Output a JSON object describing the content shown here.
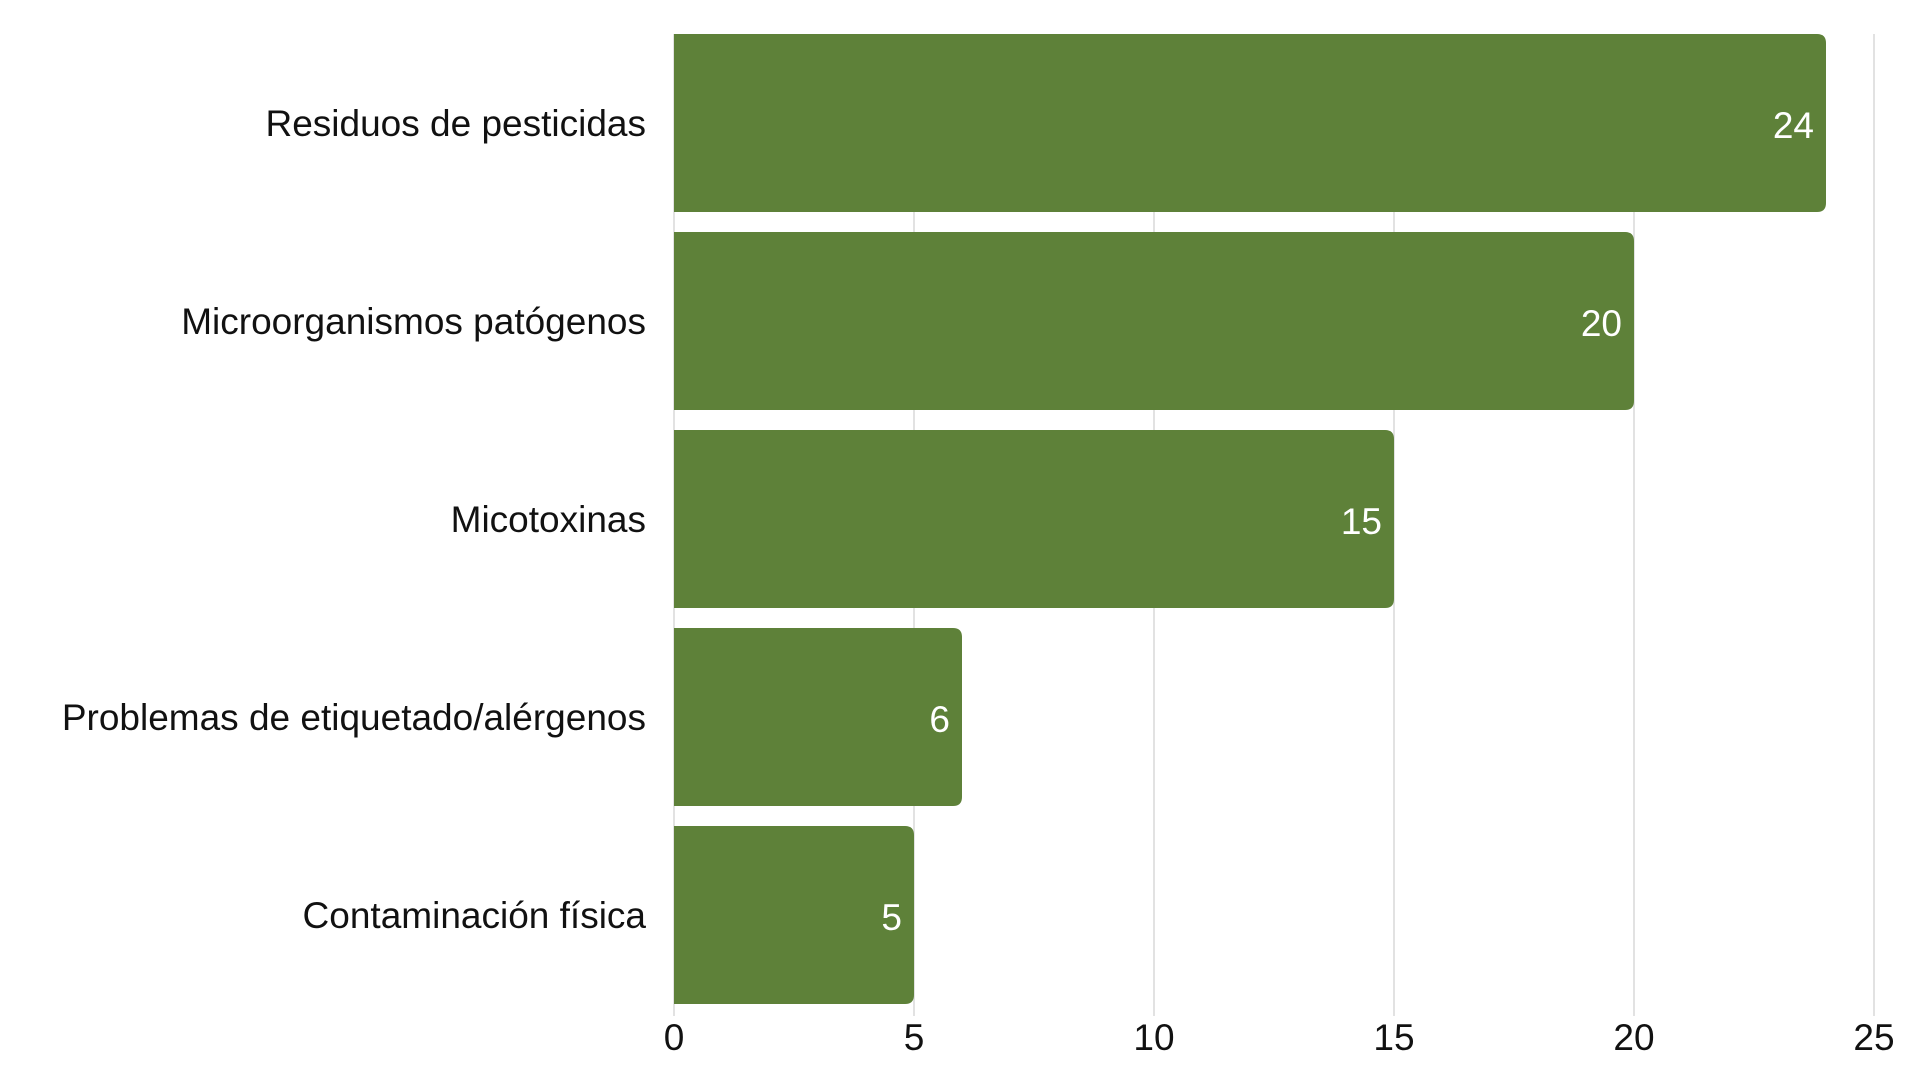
{
  "chart_data": {
    "type": "bar",
    "orientation": "horizontal",
    "categories": [
      "Residuos de pesticidas",
      "Microorganismos patógenos",
      "Micotoxinas",
      "Problemas de etiquetado/alérgenos",
      "Contaminación física"
    ],
    "values": [
      24,
      20,
      15,
      6,
      5
    ],
    "data_labels": [
      "24",
      "20",
      "15",
      "6",
      "5"
    ],
    "x_ticks": [
      "0",
      "5",
      "10",
      "15",
      "20",
      "25"
    ],
    "x_tick_values": [
      0,
      5,
      10,
      15,
      20,
      25
    ],
    "xlim": [
      0,
      25
    ],
    "title": "",
    "xlabel": "",
    "ylabel": "",
    "grid": "vertical",
    "legend": "none",
    "bar_color": "#5e8139",
    "label_color": "#ffffff",
    "grid_color": "#d9d9d9"
  }
}
